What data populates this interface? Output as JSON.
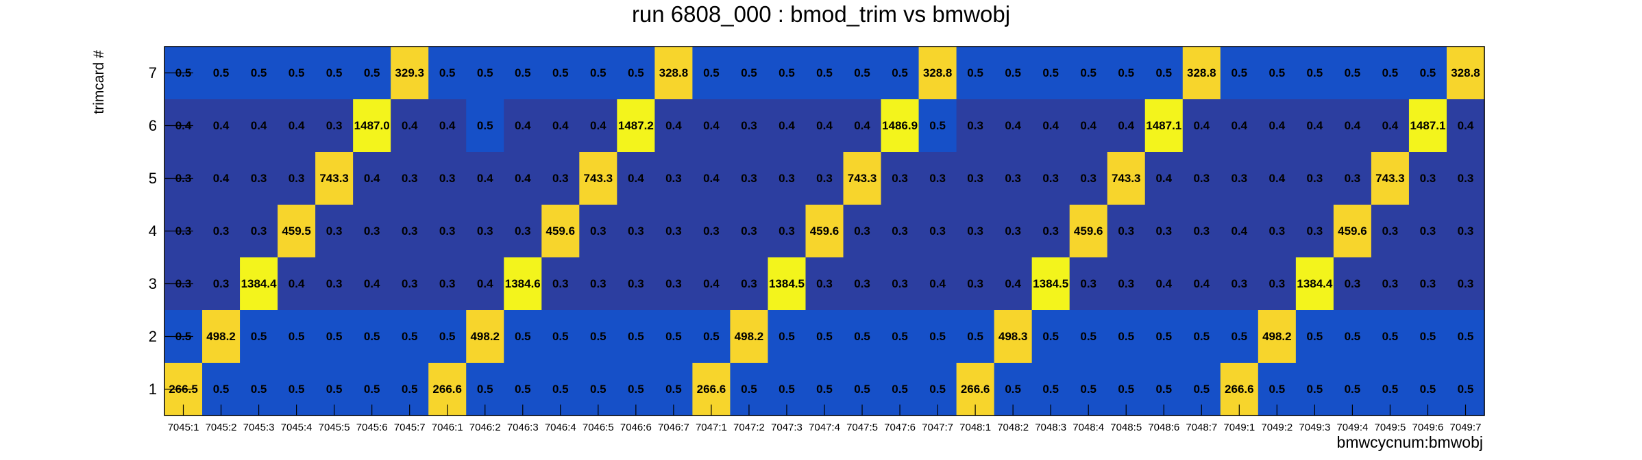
{
  "chart_data": {
    "type": "heatmap",
    "title": "run 6808_000 : bmod_trim vs bmwobj",
    "xlabel": "bmwcycnum:bmwobj",
    "ylabel": "trimcard #",
    "categories": [
      "7045:1",
      "7045:2",
      "7045:3",
      "7045:4",
      "7045:5",
      "7045:6",
      "7045:7",
      "7046:1",
      "7046:2",
      "7046:3",
      "7046:4",
      "7046:5",
      "7046:6",
      "7046:7",
      "7047:1",
      "7047:2",
      "7047:3",
      "7047:4",
      "7047:5",
      "7047:6",
      "7047:7",
      "7048:1",
      "7048:2",
      "7048:3",
      "7048:4",
      "7048:5",
      "7048:6",
      "7048:7",
      "7049:1",
      "7049:2",
      "7049:3",
      "7049:4",
      "7049:5",
      "7049:6",
      "7049:7"
    ],
    "y_categories": [
      "1",
      "2",
      "3",
      "4",
      "5",
      "6",
      "7"
    ],
    "rows": [
      {
        "y": "7",
        "values": [
          0.5,
          0.5,
          0.5,
          0.5,
          0.5,
          0.5,
          329.3,
          0.5,
          0.5,
          0.5,
          0.5,
          0.5,
          0.5,
          328.8,
          0.5,
          0.5,
          0.5,
          0.5,
          0.5,
          0.5,
          328.8,
          0.5,
          0.5,
          0.5,
          0.5,
          0.5,
          0.5,
          328.8,
          0.5,
          0.5,
          0.5,
          0.5,
          0.5,
          0.5,
          328.8
        ]
      },
      {
        "y": "6",
        "values": [
          0.4,
          0.4,
          0.4,
          0.4,
          0.3,
          1487.0,
          0.4,
          0.4,
          0.5,
          0.4,
          0.4,
          0.4,
          1487.2,
          0.4,
          0.4,
          0.3,
          0.4,
          0.4,
          0.4,
          1486.9,
          0.5,
          0.3,
          0.4,
          0.4,
          0.4,
          0.4,
          1487.1,
          0.4,
          0.4,
          0.4,
          0.4,
          0.4,
          0.4,
          1487.1,
          0.4
        ]
      },
      {
        "y": "5",
        "values": [
          0.3,
          0.4,
          0.3,
          0.3,
          743.3,
          0.4,
          0.3,
          0.3,
          0.4,
          0.4,
          0.3,
          743.3,
          0.4,
          0.3,
          0.4,
          0.3,
          0.3,
          0.3,
          743.3,
          0.3,
          0.3,
          0.3,
          0.3,
          0.3,
          0.3,
          743.3,
          0.4,
          0.3,
          0.3,
          0.4,
          0.3,
          0.3,
          743.3,
          0.3,
          0.3
        ]
      },
      {
        "y": "4",
        "values": [
          0.3,
          0.3,
          0.3,
          459.5,
          0.3,
          0.3,
          0.3,
          0.3,
          0.3,
          0.3,
          459.6,
          0.3,
          0.3,
          0.3,
          0.3,
          0.3,
          0.3,
          459.6,
          0.3,
          0.3,
          0.3,
          0.3,
          0.3,
          0.3,
          459.6,
          0.3,
          0.3,
          0.3,
          0.4,
          0.3,
          0.3,
          459.6,
          0.3,
          0.3,
          0.3
        ]
      },
      {
        "y": "3",
        "values": [
          0.3,
          0.3,
          1384.4,
          0.4,
          0.3,
          0.4,
          0.3,
          0.3,
          0.4,
          1384.6,
          0.3,
          0.3,
          0.3,
          0.3,
          0.4,
          0.3,
          1384.5,
          0.3,
          0.3,
          0.3,
          0.4,
          0.3,
          0.4,
          1384.5,
          0.3,
          0.3,
          0.4,
          0.4,
          0.3,
          0.3,
          1384.4,
          0.3,
          0.3,
          0.3,
          0.3
        ]
      },
      {
        "y": "2",
        "values": [
          0.5,
          498.2,
          0.5,
          0.5,
          0.5,
          0.5,
          0.5,
          0.5,
          498.2,
          0.5,
          0.5,
          0.5,
          0.5,
          0.5,
          0.5,
          498.2,
          0.5,
          0.5,
          0.5,
          0.5,
          0.5,
          0.5,
          498.3,
          0.5,
          0.5,
          0.5,
          0.5,
          0.5,
          0.5,
          498.2,
          0.5,
          0.5,
          0.5,
          0.5,
          0.5
        ]
      },
      {
        "y": "1",
        "values": [
          266.5,
          0.5,
          0.5,
          0.5,
          0.5,
          0.5,
          0.5,
          266.6,
          0.5,
          0.5,
          0.5,
          0.5,
          0.5,
          0.5,
          266.6,
          0.5,
          0.5,
          0.5,
          0.5,
          0.5,
          0.5,
          266.6,
          0.5,
          0.5,
          0.5,
          0.5,
          0.5,
          0.5,
          266.6,
          0.5,
          0.5,
          0.5,
          0.5,
          0.5,
          0.5
        ]
      }
    ],
    "colors": {
      "low": "#2c3ea0",
      "medium": "#1650c8",
      "high_yellow": "#f7d52c",
      "peak_yellow": "#f3f41c",
      "text": "#000000"
    }
  }
}
